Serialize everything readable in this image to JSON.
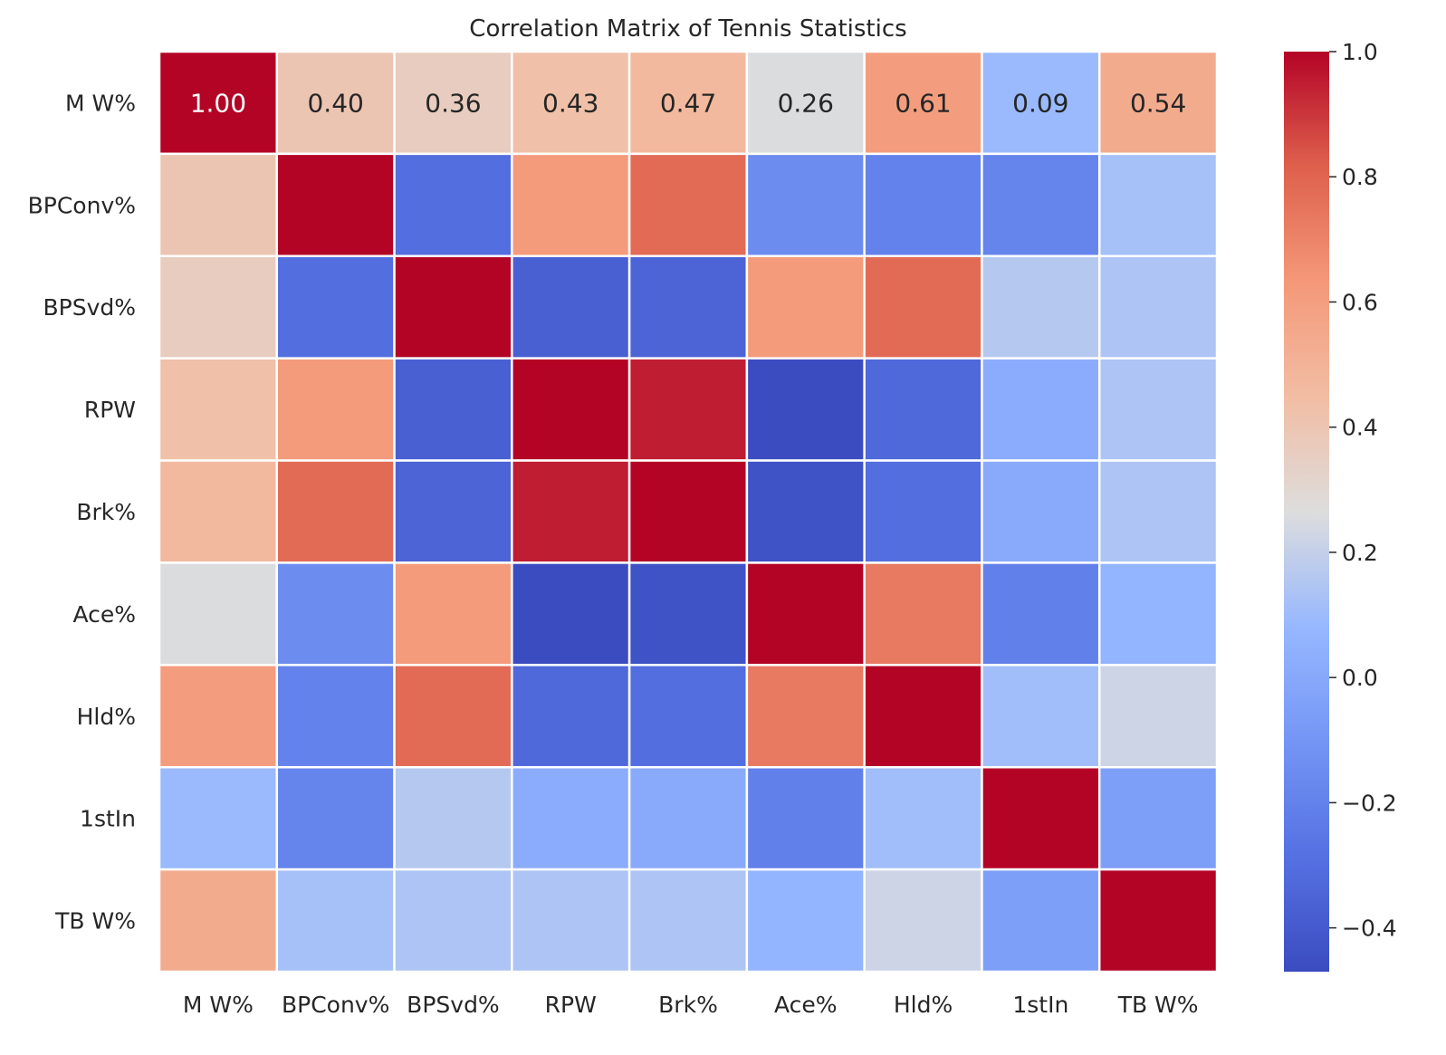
{
  "chart_data": {
    "type": "heatmap",
    "title": "Correlation Matrix of Tennis Statistics",
    "row_labels": [
      "M W%",
      "BPConv%",
      "BPSvd%",
      "RPW",
      "Brk%",
      "Ace%",
      "Hld%",
      "1stIn",
      "TB W%"
    ],
    "col_labels": [
      "M W%",
      "BPConv%",
      "BPSvd%",
      "RPW",
      "Brk%",
      "Ace%",
      "Hld%",
      "1stIn",
      "TB W%"
    ],
    "values": [
      [
        1.0,
        0.4,
        0.36,
        0.43,
        0.47,
        0.26,
        0.61,
        0.09,
        0.54
      ],
      [
        0.4,
        1.0,
        -0.3,
        0.62,
        0.78,
        -0.15,
        -0.2,
        -0.19,
        0.12
      ],
      [
        0.36,
        -0.3,
        1.0,
        -0.37,
        -0.35,
        0.62,
        0.78,
        0.16,
        0.14
      ],
      [
        0.43,
        0.62,
        -0.37,
        1.0,
        0.95,
        -0.47,
        -0.33,
        0.02,
        0.14
      ],
      [
        0.47,
        0.78,
        -0.35,
        0.95,
        1.0,
        -0.44,
        -0.3,
        0.01,
        0.14
      ],
      [
        0.26,
        -0.15,
        0.62,
        -0.47,
        -0.44,
        1.0,
        0.73,
        -0.21,
        0.06
      ],
      [
        0.61,
        -0.2,
        0.78,
        -0.33,
        -0.3,
        0.73,
        1.0,
        0.11,
        0.22
      ],
      [
        0.09,
        -0.19,
        0.16,
        0.02,
        0.01,
        -0.21,
        0.11,
        1.0,
        -0.05
      ],
      [
        0.54,
        0.12,
        0.14,
        0.14,
        0.14,
        0.06,
        0.22,
        -0.05,
        1.0
      ]
    ],
    "annotated_rows": [
      0
    ],
    "colorbar": {
      "colormap": "coolwarm",
      "vmin": -0.47,
      "vmax": 1.0,
      "ticks": [
        1.0,
        0.8,
        0.6,
        0.4,
        0.2,
        0.0,
        -0.2,
        -0.4
      ],
      "tick_labels": [
        "1.0",
        "0.8",
        "0.6",
        "0.4",
        "0.2",
        "0.0",
        "−0.2",
        "−0.4"
      ]
    },
    "grid": "white cell separators"
  }
}
